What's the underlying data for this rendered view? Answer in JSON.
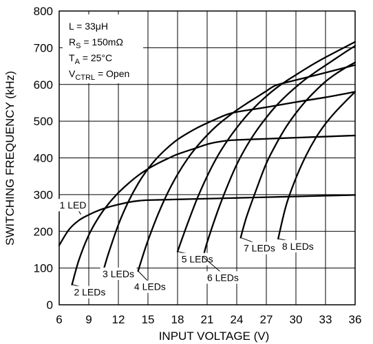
{
  "chart_data": {
    "type": "line",
    "xlabel": "INPUT VOLTAGE (V)",
    "ylabel": "SWITCHING FREQUENCY (kHz)",
    "xlim": [
      6,
      36
    ],
    "ylim": [
      0,
      800
    ],
    "xticks": [
      6,
      9,
      12,
      15,
      18,
      21,
      24,
      27,
      30,
      33,
      36
    ],
    "yticks": [
      0,
      100,
      200,
      300,
      400,
      500,
      600,
      700,
      800
    ],
    "grid": true,
    "conditions": [
      {
        "main": "L = 33μH",
        "sub": "",
        "tail": ""
      },
      {
        "main": "R",
        "sub": "S",
        "tail": " = 150mΩ"
      },
      {
        "main": "T",
        "sub": "A",
        "tail": " = 25°C"
      },
      {
        "main": "V",
        "sub": "CTRL",
        "tail": " = Open"
      }
    ],
    "series": [
      {
        "name": "1 LED",
        "x": [
          6,
          7,
          8,
          9,
          10,
          11,
          12,
          13,
          14,
          15,
          18,
          21,
          24,
          27,
          30,
          33,
          36
        ],
        "y": [
          162,
          205,
          230,
          245,
          257,
          266,
          273,
          279,
          283,
          285,
          287,
          289,
          291,
          293,
          295,
          297,
          299
        ]
      },
      {
        "name": "2 LEDs",
        "x": [
          7.3,
          8,
          9,
          10,
          11,
          12,
          13,
          14,
          15,
          16,
          17,
          18,
          20,
          21,
          22,
          23,
          24,
          27,
          30,
          33,
          36
        ],
        "y": [
          55,
          122,
          190,
          238,
          275,
          305,
          330,
          352,
          370,
          385,
          398,
          410,
          428,
          437,
          443,
          447,
          449,
          452,
          455,
          458,
          461
        ]
      },
      {
        "name": "3 LEDs",
        "x": [
          10.5,
          11,
          12,
          13,
          14,
          15,
          16,
          17,
          18,
          19,
          20,
          21,
          22,
          23,
          24,
          27,
          30,
          33,
          36
        ],
        "y": [
          95,
          140,
          218,
          280,
          330,
          370,
          402,
          428,
          450,
          467,
          482,
          495,
          507,
          518,
          525,
          538,
          552,
          565,
          580
        ]
      },
      {
        "name": "4 LEDs",
        "x": [
          14,
          14.5,
          15,
          16,
          17,
          18,
          19,
          20,
          21,
          22,
          23,
          24,
          25,
          26,
          27,
          28,
          30,
          33,
          36
        ],
        "y": [
          92,
          135,
          175,
          245,
          305,
          355,
          397,
          432,
          462,
          488,
          510,
          530,
          548,
          565,
          582,
          598,
          612,
          632,
          653
        ]
      },
      {
        "name": "5 LEDs",
        "x": [
          18,
          18.5,
          19,
          20,
          21,
          22,
          23,
          24,
          25,
          26,
          27,
          28,
          29,
          30,
          31,
          32,
          33,
          34,
          35,
          36
        ],
        "y": [
          145,
          183,
          220,
          290,
          350,
          402,
          445,
          482,
          515,
          543,
          568,
          590,
          609,
          626,
          643,
          659,
          674,
          688,
          702,
          716
        ]
      },
      {
        "name": "6 LEDs",
        "x": [
          20.6,
          21,
          22,
          23,
          24,
          25,
          26,
          27,
          28,
          29,
          30,
          31,
          32,
          33,
          34,
          35,
          36
        ],
        "y": [
          130,
          170,
          250,
          320,
          382,
          432,
          474,
          510,
          542,
          569,
          593,
          615,
          634,
          652,
          670,
          688,
          705
        ]
      },
      {
        "name": "7 LEDs",
        "x": [
          24.4,
          25,
          26,
          27,
          28,
          29,
          30,
          31,
          32,
          33,
          34,
          35,
          36
        ],
        "y": [
          183,
          240,
          315,
          385,
          438,
          484,
          522,
          555,
          583,
          608,
          628,
          645,
          660
        ]
      },
      {
        "name": "8 LEDs",
        "x": [
          28.2,
          29,
          30,
          31,
          32,
          33,
          34,
          35,
          36
        ],
        "y": [
          180,
          270,
          345,
          405,
          454,
          493,
          525,
          553,
          580
        ]
      }
    ],
    "labels": [
      {
        "text": "1 LED",
        "x": 7.4,
        "y": 262,
        "lx": 8.2,
        "ly": 246
      },
      {
        "text": "2 LEDs",
        "x": 9.1,
        "y": 25,
        "lx": 7.3,
        "ly": 55
      },
      {
        "text": "3 LEDs",
        "x": 12.0,
        "y": 75,
        "lx": 10.5,
        "ly": 95
      },
      {
        "text": "4 LEDs",
        "x": 15.2,
        "y": 40,
        "lx": 14.0,
        "ly": 92
      },
      {
        "text": "5 LEDs",
        "x": 20.0,
        "y": 115,
        "lx": 18.0,
        "ly": 145
      },
      {
        "text": "6 LEDs",
        "x": 22.6,
        "y": 65,
        "lx": 20.6,
        "ly": 130
      },
      {
        "text": "7 LEDs",
        "x": 26.3,
        "y": 145,
        "lx": 24.4,
        "ly": 183
      },
      {
        "text": "8 LEDs",
        "x": 30.2,
        "y": 150,
        "lx": 28.2,
        "ly": 180
      }
    ]
  }
}
